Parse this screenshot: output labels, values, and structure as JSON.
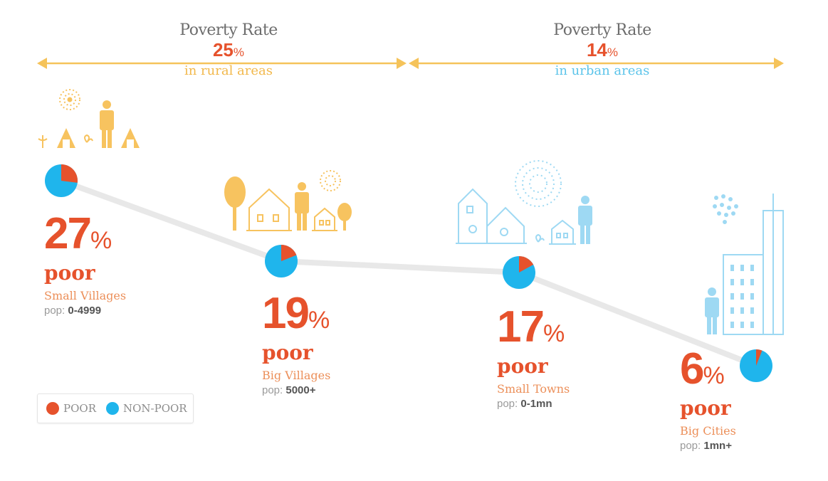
{
  "headers": [
    {
      "label": "Poverty Rate",
      "value": "25",
      "unit": "%",
      "sub": "in rural areas"
    },
    {
      "label": "Poverty Rate",
      "value": "14",
      "unit": "%",
      "sub": "in urban areas"
    }
  ],
  "legend": {
    "poor": "POOR",
    "non_poor": "NON-POOR"
  },
  "colors": {
    "poor": "#e6522c",
    "non_poor": "#1fb5ec",
    "rural": "#f5c35a",
    "urban": "#8fd4f2",
    "trend": "#e8e8e8"
  },
  "chart_data": {
    "type": "line",
    "categories": [
      "Small Villages",
      "Big Villages",
      "Small Towns",
      "Big Cities"
    ],
    "series": [
      {
        "values": [
          27,
          19,
          17,
          6
        ]
      }
    ],
    "pie_values_pct": [
      27,
      19,
      17,
      6
    ],
    "labels": {
      "value_suffix": "%",
      "poor_word": "poor",
      "pop_prefix": "pop:"
    },
    "populations": [
      "0-4999",
      "5000+",
      "0-1mn",
      "1mn+"
    ],
    "icons": [
      "village-huts-icon",
      "village-houses-icon",
      "town-houses-icon",
      "city-buildings-icon"
    ]
  }
}
